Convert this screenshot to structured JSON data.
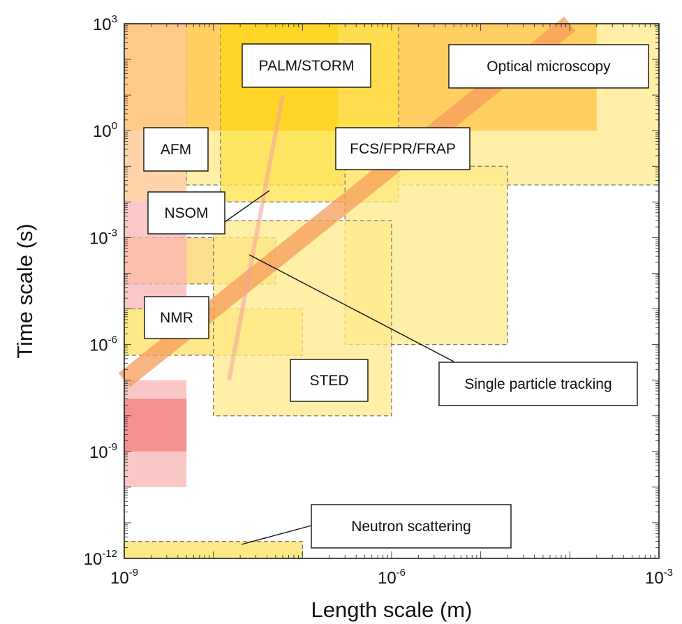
{
  "chart_data": {
    "type": "region-map",
    "xlabel": "Length scale (m)",
    "ylabel": "Time scale (s)",
    "x_scale": "log",
    "y_scale": "log",
    "xlim": [
      1e-09,
      0.001
    ],
    "ylim": [
      1e-12,
      1000.0
    ],
    "x_ticks": [
      {
        "base": "10",
        "exp": "-9",
        "value": 1e-09
      },
      {
        "base": "10",
        "exp": "-6",
        "value": 1e-06
      },
      {
        "base": "10",
        "exp": "-3",
        "value": 0.001
      }
    ],
    "y_ticks": [
      {
        "base": "10",
        "exp": "-12",
        "value": 1e-12
      },
      {
        "base": "10",
        "exp": "-9",
        "value": 1e-09
      },
      {
        "base": "10",
        "exp": "-6",
        "value": 1e-06
      },
      {
        "base": "10",
        "exp": "-3",
        "value": 0.001
      },
      {
        "base": "10",
        "exp": "0",
        "value": 1
      },
      {
        "base": "10",
        "exp": "3",
        "value": 1000
      }
    ],
    "grid": false,
    "regions": [
      {
        "technique": "Optical microscopy",
        "x": [
          5e-09,
          0.001
        ],
        "y": [
          0.03,
          1000
        ],
        "color": "#FFE98A",
        "dashed": true
      },
      {
        "technique": "Optical microscopy",
        "x": [
          1e-09,
          0.0002
        ],
        "y": [
          1,
          1000
        ],
        "color": "#FFC64A"
      },
      {
        "technique": "AFM",
        "x": [
          1e-09,
          5e-09
        ],
        "y": [
          0.01,
          1000
        ],
        "color": "#FFC58C"
      },
      {
        "technique": "PALM/STORM",
        "x": [
          1.2e-08,
          1.2e-06
        ],
        "y": [
          0.01,
          1000
        ],
        "color": "#FFE24A",
        "dashed": true
      },
      {
        "technique": "PALM/STORM",
        "x": [
          1.2e-08,
          2.5e-07
        ],
        "y": [
          1,
          1000
        ],
        "color": "#FFD21A"
      },
      {
        "technique": "FCS/FPR/FRAP",
        "x": [
          3e-07,
          2e-05
        ],
        "y": [
          1e-06,
          0.1
        ],
        "color": "#FFEB8A",
        "dashed": true
      },
      {
        "technique": "NSOM",
        "x": [
          1e-09,
          5e-08
        ],
        "y": [
          5e-05,
          0.001
        ],
        "color": "#FFD36A",
        "dashed": true
      },
      {
        "technique": "NSOM",
        "x": [
          1e-09,
          5e-09
        ],
        "y": [
          1e-05,
          0.01
        ],
        "color": "#F9B6B6"
      },
      {
        "technique": "NMR",
        "x": [
          1e-09,
          1e-07
        ],
        "y": [
          5e-07,
          1e-05
        ],
        "color": "#FFE060",
        "dashed": true
      },
      {
        "technique": "STED",
        "x": [
          1e-08,
          1e-06
        ],
        "y": [
          1e-08,
          0.003
        ],
        "color": "#FFE98A",
        "dashed": true
      },
      {
        "technique": "Neutron scattering",
        "x": [
          1e-09,
          1e-07
        ],
        "y": [
          1e-12,
          3e-12
        ],
        "color": "#FFE060",
        "dashed": true
      },
      {
        "technique": "",
        "x": [
          1e-09,
          5e-09
        ],
        "y": [
          1e-10,
          1e-07
        ],
        "color": "#F8B4B4"
      },
      {
        "technique": "",
        "x": [
          1e-09,
          5e-09
        ],
        "y": [
          1e-09,
          3e-08
        ],
        "color": "#F27F7F"
      }
    ],
    "bands": [
      {
        "technique": "Single particle tracking",
        "from": [
          1e-09,
          1e-07
        ],
        "to": [
          0.0001,
          1000
        ],
        "color": "#F59C5A"
      }
    ],
    "labels": [
      {
        "text": "Optical microscopy"
      },
      {
        "text": "PALM/STORM"
      },
      {
        "text": "AFM"
      },
      {
        "text": "FCS/FPR/FRAP"
      },
      {
        "text": "NSOM"
      },
      {
        "text": "NMR"
      },
      {
        "text": "STED"
      },
      {
        "text": "Single particle tracking"
      },
      {
        "text": "Neutron scattering"
      }
    ]
  }
}
